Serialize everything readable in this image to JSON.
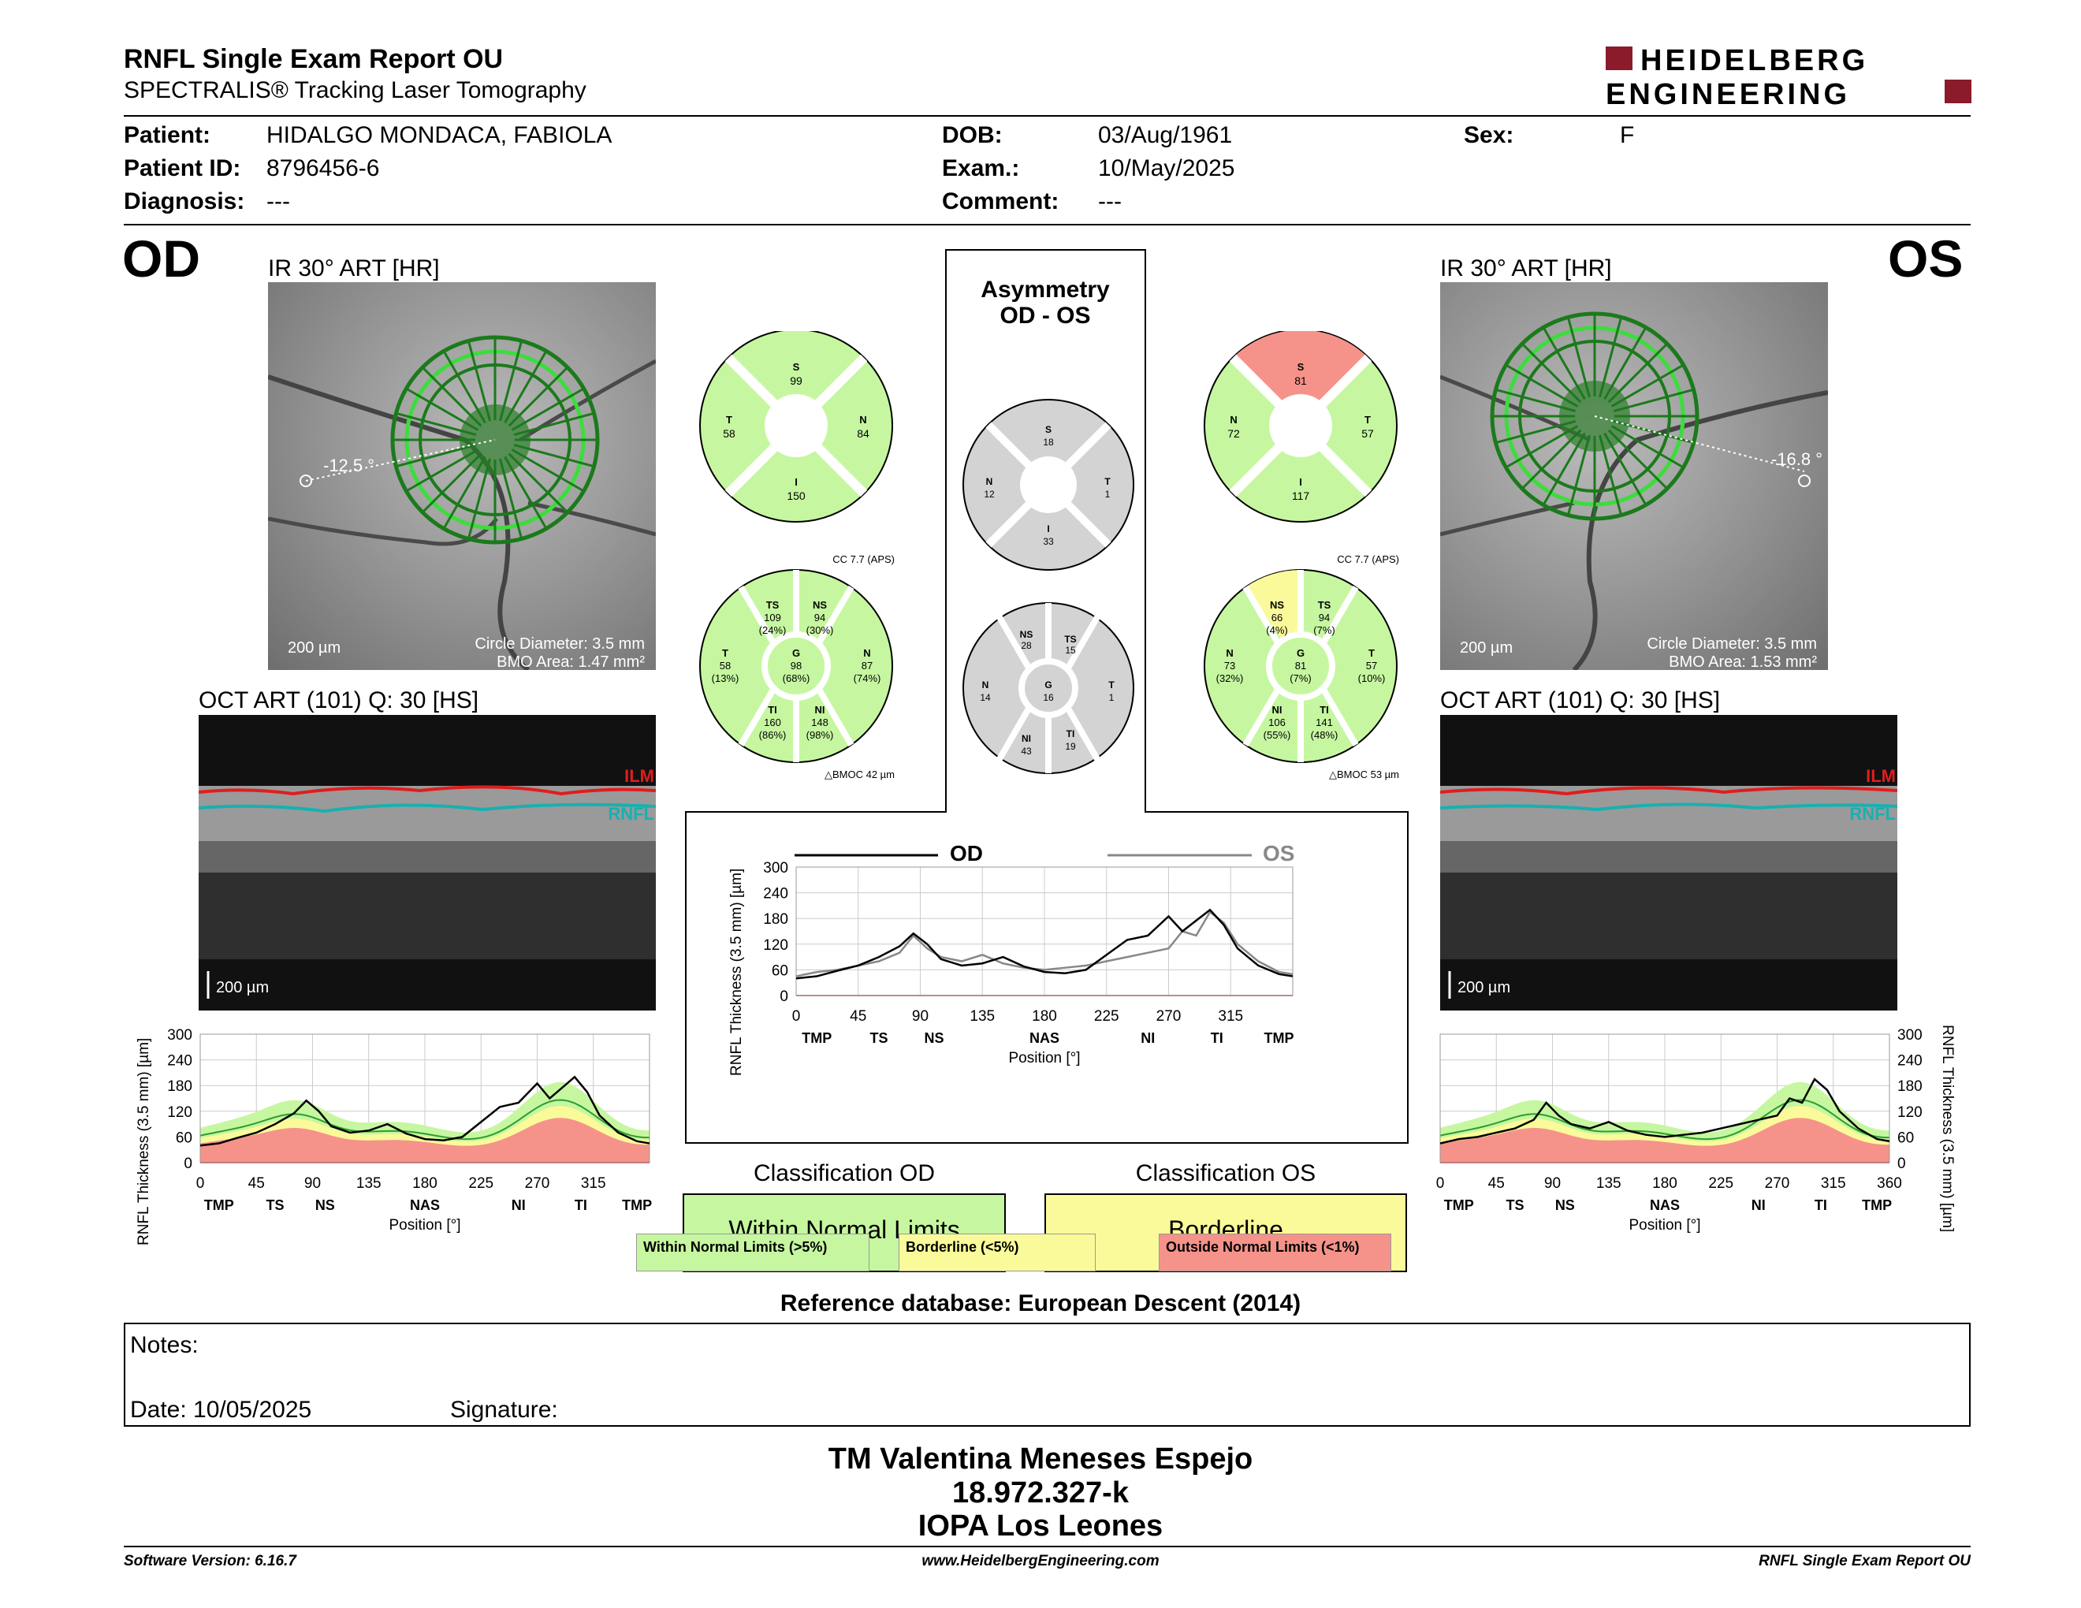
{
  "header": {
    "title": "RNFL Single Exam Report OU",
    "subtitle": "SPECTRALIS® Tracking Laser Tomography",
    "logo_line1": "HEIDELBERG",
    "logo_line2": "ENGINEERING",
    "logo_color": "#8b1a2a"
  },
  "patient": {
    "patient_label": "Patient:",
    "patient_value": "HIDALGO MONDACA, FABIOLA",
    "id_label": "Patient ID:",
    "id_value": "8796456-6",
    "diag_label": "Diagnosis:",
    "diag_value": "---",
    "dob_label": "DOB:",
    "dob_value": "03/Aug/1961",
    "exam_label": "Exam.:",
    "exam_value": "10/May/2025",
    "comment_label": "Comment:",
    "comment_value": "---",
    "sex_label": "Sex:",
    "sex_value": "F"
  },
  "od": {
    "eye": "OD",
    "ir_title": "IR 30° ART [HR]",
    "angle": "-12.5 °",
    "scale": "200 µm",
    "circle_diam": "Circle Diameter: 3.5 mm",
    "bmo_area": "BMO Area: 1.47 mm²",
    "oct_title": "OCT ART (101) Q: 30 [HS]",
    "oct_scale": "200 µm",
    "ilm": "ILM",
    "rnfl": "RNFL",
    "classification_title": "Classification OD",
    "classification_value": "Within Normal Limits",
    "sector4": {
      "S": "99",
      "T": "58",
      "N": "84",
      "I": "150"
    },
    "sector6": {
      "cc": "CC 7.7 (APS)",
      "bmoc": "△BMOC 42 µm",
      "TS": "109",
      "TS_p": "(24%)",
      "NS": "94",
      "NS_p": "(30%)",
      "T": "58",
      "T_p": "(13%)",
      "G": "98",
      "G_p": "(68%)",
      "N": "87",
      "N_p": "(74%)",
      "TI": "160",
      "TI_p": "(86%)",
      "NI": "148",
      "NI_p": "(98%)"
    }
  },
  "os": {
    "eye": "OS",
    "ir_title": "IR 30° ART [HR]",
    "angle": "-16.8 °",
    "scale": "200 µm",
    "circle_diam": "Circle Diameter: 3.5 mm",
    "bmo_area": "BMO Area: 1.53 mm²",
    "oct_title": "OCT ART (101) Q: 30 [HS]",
    "oct_scale": "200 µm",
    "ilm": "ILM",
    "rnfl": "RNFL",
    "classification_title": "Classification OS",
    "classification_value": "Borderline",
    "sector4": {
      "S": "81",
      "N": "72",
      "T": "57",
      "I": "117"
    },
    "sector6": {
      "cc": "CC 7.7 (APS)",
      "bmoc": "△BMOC 53 µm",
      "NS": "66",
      "NS_p": "(4%)",
      "TS": "94",
      "TS_p": "(7%)",
      "N": "73",
      "N_p": "(32%)",
      "G": "81",
      "G_p": "(7%)",
      "T": "57",
      "T_p": "(10%)",
      "NI": "106",
      "NI_p": "(55%)",
      "TI": "141",
      "TI_p": "(48%)"
    }
  },
  "asym": {
    "title1": "Asymmetry",
    "title2": "OD - OS",
    "s4": {
      "S": "18",
      "N": "12",
      "T": "1",
      "I": "33"
    },
    "s6": {
      "NS": "28",
      "TS": "15",
      "N": "14",
      "G": "16",
      "T": "1",
      "NI": "43",
      "TI": "19"
    }
  },
  "chart_axes": {
    "ylabel": "RNFL Thickness (3.5 mm) [µm]",
    "xlabel": "Position [°]",
    "yticks": [
      "300",
      "240",
      "180",
      "120",
      "60",
      "0"
    ],
    "center_yticks": [
      "300",
      "240",
      "180",
      "120",
      "60",
      "0"
    ],
    "xticks_od": [
      "0",
      "45",
      "90",
      "135",
      "180",
      "225",
      "270",
      "315"
    ],
    "xticks_os": [
      "0",
      "45",
      "90",
      "135",
      "180",
      "225",
      "270",
      "315",
      "360"
    ],
    "xticks_center": [
      "0",
      "45",
      "90",
      "135",
      "180",
      "225",
      "270",
      "315"
    ],
    "sectors": [
      "TMP",
      "TS",
      "NS",
      "NAS",
      "NI",
      "TI",
      "TMP"
    ],
    "center_od": "OD",
    "center_os": "OS"
  },
  "chart_data": [
    {
      "type": "line",
      "title": "OD",
      "x": [
        0,
        15,
        30,
        45,
        60,
        75,
        85,
        95,
        105,
        120,
        135,
        150,
        165,
        180,
        195,
        210,
        225,
        240,
        255,
        270,
        280,
        290,
        300,
        310,
        320,
        335,
        350,
        360
      ],
      "series": [
        {
          "name": "OD",
          "values": [
            40,
            45,
            58,
            70,
            90,
            115,
            145,
            120,
            85,
            70,
            75,
            90,
            68,
            55,
            52,
            60,
            95,
            130,
            140,
            185,
            150,
            175,
            200,
            165,
            110,
            70,
            50,
            45
          ]
        }
      ],
      "ylim": [
        0,
        300
      ],
      "xlim": [
        0,
        360
      ]
    },
    {
      "type": "line",
      "title": "OS",
      "x": [
        0,
        15,
        30,
        45,
        60,
        75,
        85,
        95,
        105,
        120,
        135,
        150,
        165,
        180,
        195,
        210,
        225,
        240,
        255,
        270,
        280,
        290,
        300,
        310,
        320,
        335,
        350,
        360
      ],
      "series": [
        {
          "name": "OS",
          "values": [
            45,
            55,
            60,
            70,
            80,
            100,
            140,
            110,
            90,
            80,
            95,
            75,
            65,
            60,
            65,
            70,
            80,
            90,
            100,
            110,
            150,
            140,
            195,
            170,
            120,
            80,
            55,
            50
          ]
        }
      ],
      "ylim": [
        0,
        300
      ],
      "xlim": [
        0,
        360
      ]
    }
  ],
  "legend": {
    "wnl": "Within Normal Limits (>5%)",
    "bl": "Borderline (<5%)",
    "onl": "Outside Normal Limits (<1%)",
    "wnl_color": "#c6f7a0",
    "bl_color": "#fafa9a",
    "onl_color": "#f5938a"
  },
  "reference": "Reference database: European Descent (2014)",
  "notes": {
    "notes_label": "Notes:",
    "date_label": "Date: 10/05/2025",
    "signature_label": "Signature:"
  },
  "signer": {
    "line1": "TM Valentina Meneses Espejo",
    "line2": "18.972.327-k",
    "line3": "IOPA Los Leones"
  },
  "footer": {
    "left": "Software Version: 6.16.7",
    "center": "www.HeidelbergEngineering.com",
    "right": "RNFL Single Exam Report OU"
  }
}
